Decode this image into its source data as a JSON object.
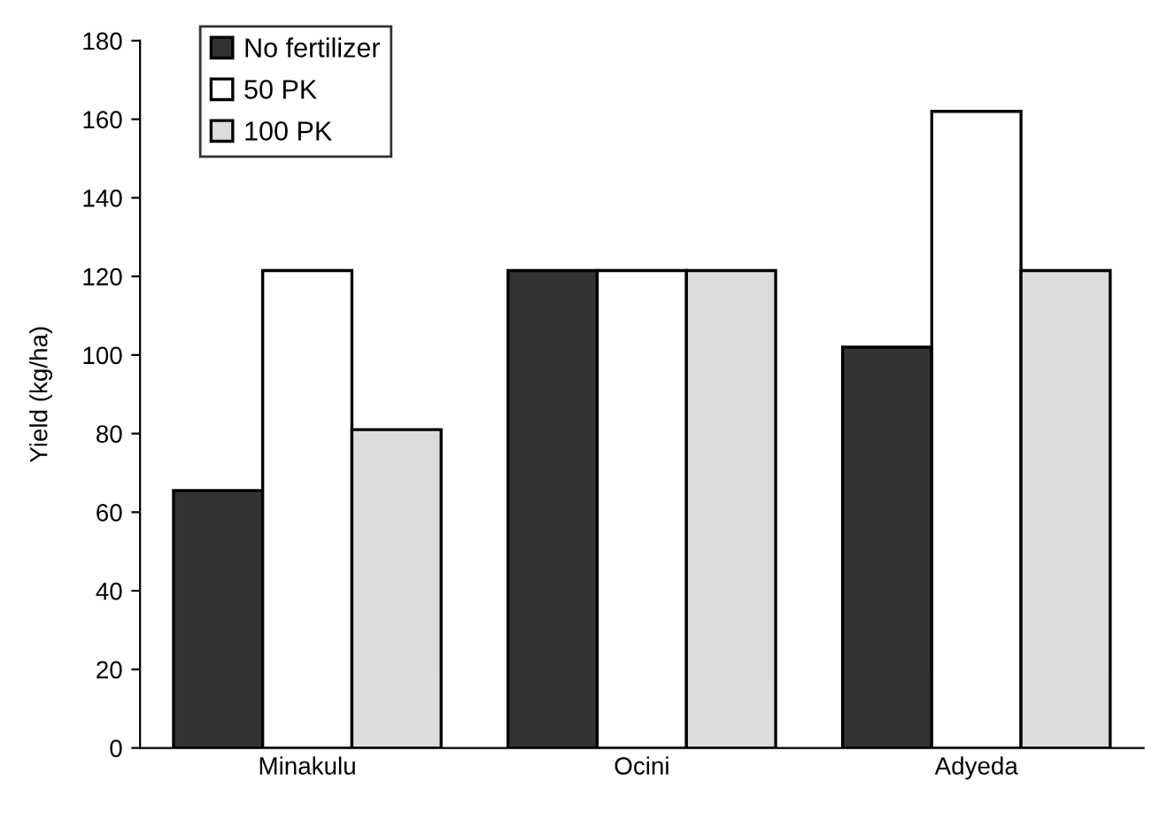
{
  "chart_data": {
    "type": "bar",
    "ylabel": "Yield (kg/ha)",
    "categories": [
      "Minakulu",
      "Ocini",
      "Adyeda"
    ],
    "series": [
      {
        "name": "No fertilizer",
        "color": "#333333",
        "values": [
          65.5,
          121.5,
          102
        ]
      },
      {
        "name": "50 PK",
        "color": "#ffffff",
        "values": [
          121.5,
          121.5,
          162
        ]
      },
      {
        "name": "100 PK",
        "color": "#dcdcdc",
        "values": [
          81,
          121.5,
          121.5
        ]
      }
    ],
    "ylim": [
      0,
      180
    ],
    "yticks": [
      0,
      20,
      40,
      60,
      80,
      100,
      120,
      140,
      160,
      180
    ],
    "grid": false,
    "legend": "top left"
  }
}
